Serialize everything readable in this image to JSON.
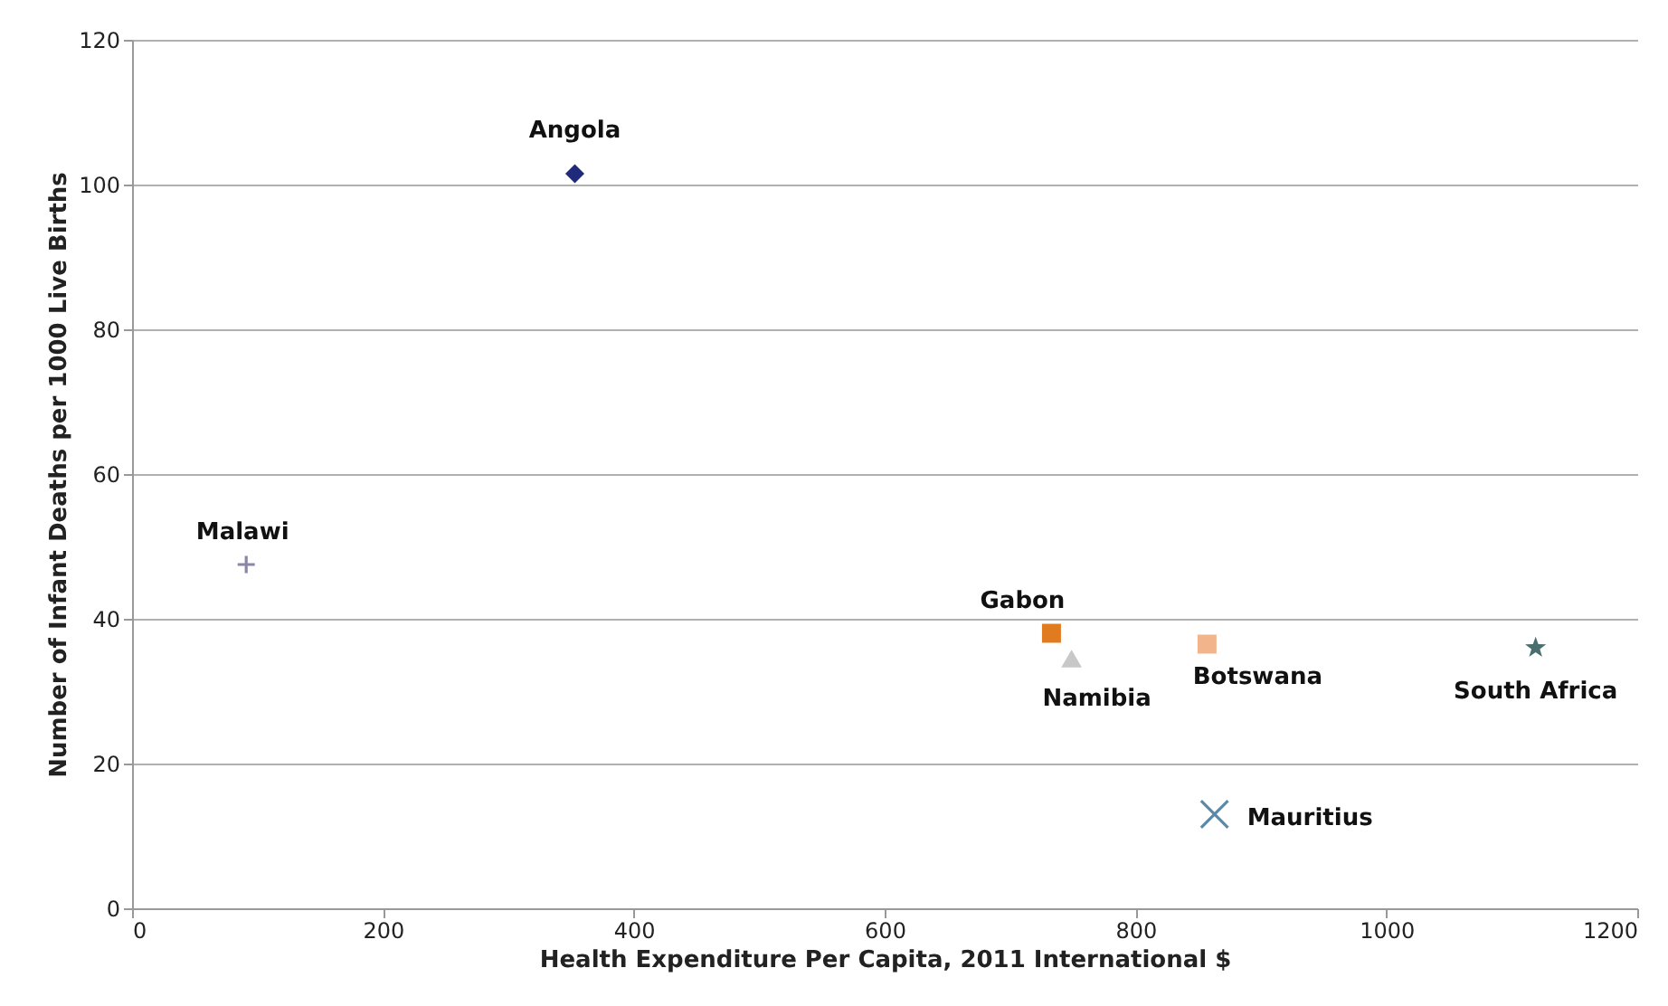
{
  "chart_data": {
    "type": "scatter",
    "xlabel": "Health Expenditure Per Capita, 2011 International $",
    "ylabel": "Number of Infant Deaths per 1000 Live Births",
    "xlim": [
      0,
      1200
    ],
    "xticks": [
      0,
      200,
      400,
      600,
      800,
      1000,
      1200
    ],
    "ylim": [
      0,
      120
    ],
    "yticks": [
      0,
      20,
      40,
      60,
      80,
      100,
      120
    ],
    "grid": "y",
    "series": [
      {
        "name": "Angola",
        "color": "#1f2a7a",
        "marker": "diamond",
        "x": [
          353
        ],
        "values": [
          101.5
        ]
      },
      {
        "name": "Malawi",
        "color": "#8a86a8",
        "marker": "cross",
        "x": [
          91
        ],
        "values": [
          47.5
        ]
      },
      {
        "name": "Gabon",
        "color": "#e07b20",
        "marker": "square",
        "x": [
          733
        ],
        "values": [
          38
        ]
      },
      {
        "name": "Namibia",
        "color": "#c8c8c8",
        "marker": "triangle",
        "x": [
          749
        ],
        "values": [
          34.5
        ]
      },
      {
        "name": "Botswana",
        "color": "#f2b48a",
        "marker": "square",
        "x": [
          857
        ],
        "values": [
          36.5
        ]
      },
      {
        "name": "South Africa",
        "color": "#4a6e6e",
        "marker": "star",
        "x": [
          1119
        ],
        "values": [
          36
        ]
      },
      {
        "name": "Mauritius",
        "color": "#5a8aa8",
        "marker": "x",
        "x": [
          863
        ],
        "values": [
          13
        ]
      }
    ]
  }
}
